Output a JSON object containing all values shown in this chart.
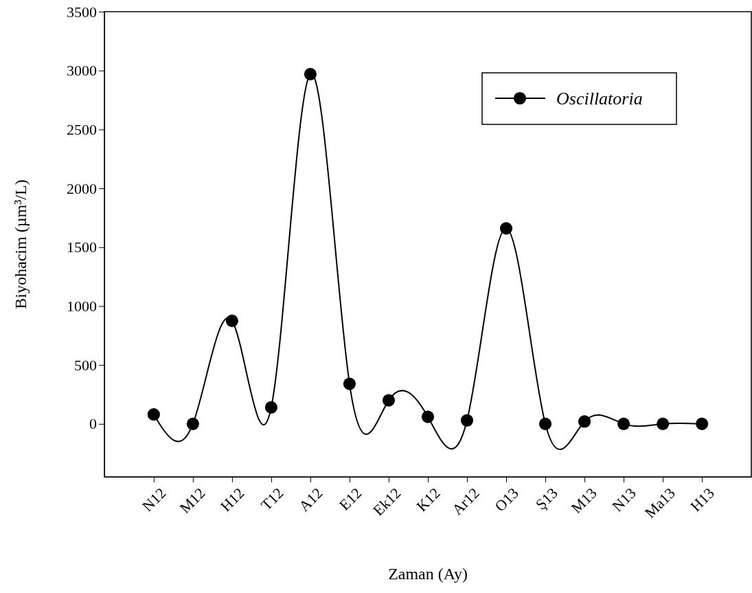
{
  "chart_data": {
    "type": "line",
    "xlabel": "Zaman (Ay)",
    "ylabel": "Biyohacim (µm³/L)",
    "categories": [
      "N12",
      "M12",
      "H12",
      "T12",
      "A12",
      "E12",
      "Ek12",
      "K12",
      "Ar12",
      "O13",
      "Ş13",
      "M13",
      "N13",
      "Ma13",
      "H13"
    ],
    "series": [
      {
        "name": "Oscillatoria",
        "color": "#000000",
        "values": [
          80,
          0,
          875,
          140,
          2970,
          340,
          200,
          60,
          30,
          1660,
          0,
          20,
          0,
          0,
          0
        ]
      }
    ],
    "ylim": [
      -450,
      3500
    ],
    "yticks": [
      0,
      500,
      1000,
      1500,
      2000,
      2500,
      3000,
      3500
    ],
    "grid": false,
    "legend": "top right",
    "marker": "circle",
    "line_style": "solid"
  }
}
